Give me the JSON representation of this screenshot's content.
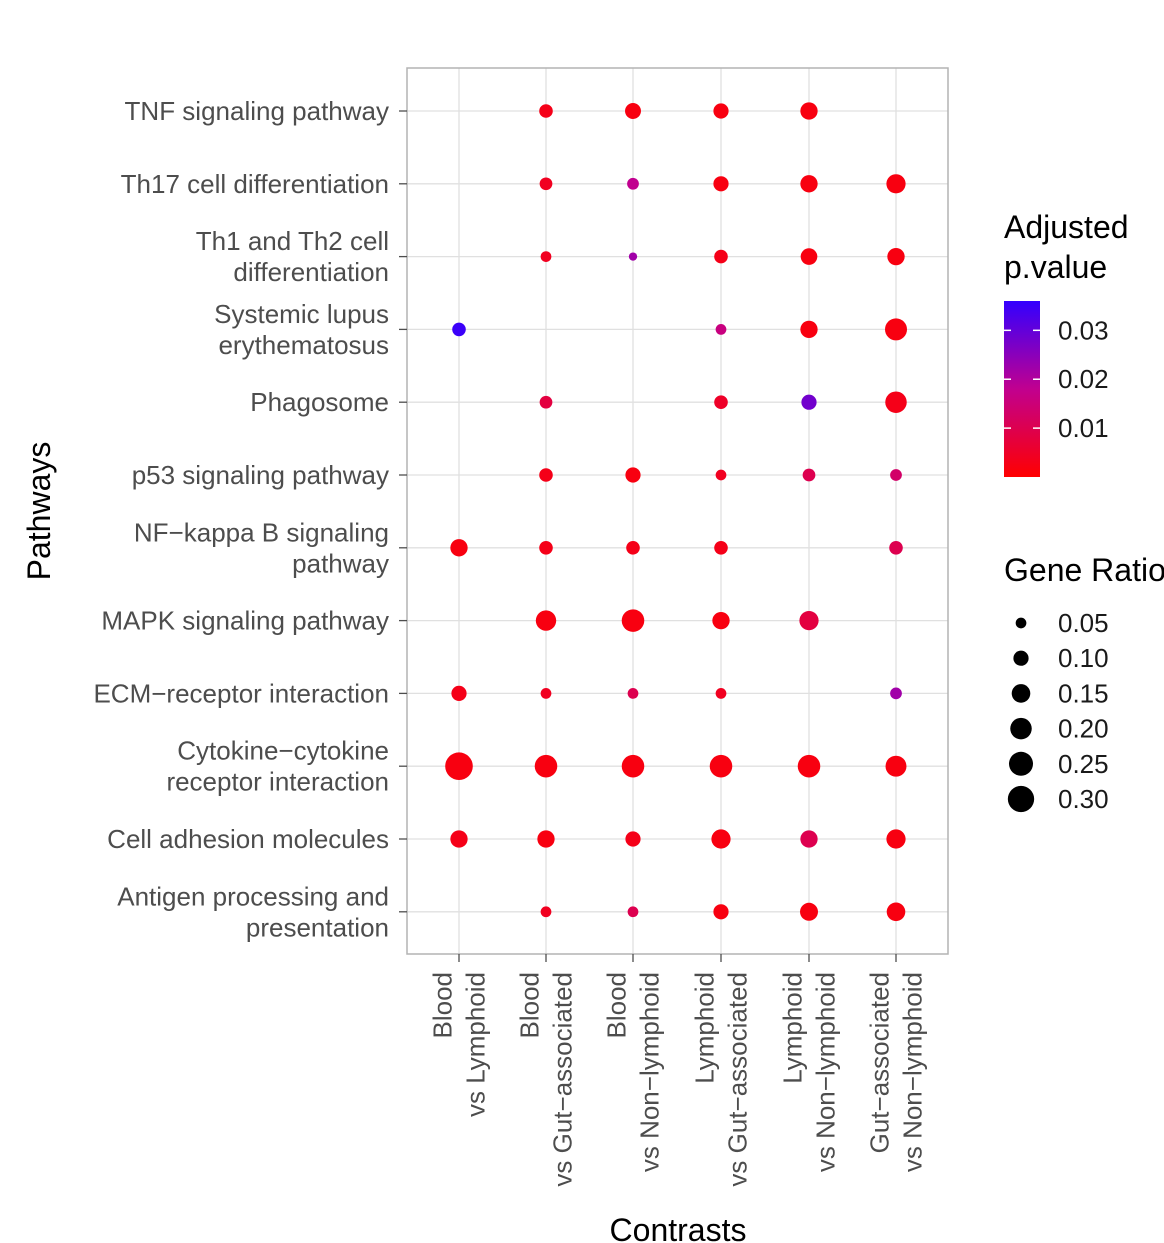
{
  "chart_data": {
    "type": "scatter",
    "subtype": "dot-plot",
    "title": "",
    "xlabel": "Contrasts",
    "ylabel": "Pathways",
    "grid": true,
    "x_categories": [
      [
        "Blood",
        "vs Lymphoid"
      ],
      [
        "Blood",
        "vs Gut−associated"
      ],
      [
        "Blood",
        "vs Non−lymphoid"
      ],
      [
        "Lymphoid",
        "vs Gut−associated"
      ],
      [
        "Lymphoid",
        "vs Non−lymphoid"
      ],
      [
        "Gut−associated",
        "vs Non−lymphoid"
      ]
    ],
    "y_categories": [
      [
        "TNF signaling pathway"
      ],
      [
        "Th17 cell differentiation"
      ],
      [
        "Th1 and Th2 cell",
        "differentiation"
      ],
      [
        "Systemic lupus",
        "erythematosus"
      ],
      [
        "Phagosome"
      ],
      [
        "p53 signaling pathway"
      ],
      [
        "NF−kappa B signaling",
        "pathway"
      ],
      [
        "MAPK signaling pathway"
      ],
      [
        "ECM−receptor interaction"
      ],
      [
        "Cytokine−cytokine",
        "receptor interaction"
      ],
      [
        "Cell adhesion molecules"
      ],
      [
        "Antigen processing and",
        "presentation"
      ]
    ],
    "points": [
      {
        "row": 0,
        "col": 1,
        "ratio": 0.08,
        "p": 0.003
      },
      {
        "row": 0,
        "col": 2,
        "ratio": 0.11,
        "p": 0.002
      },
      {
        "row": 0,
        "col": 3,
        "ratio": 0.1,
        "p": 0.002
      },
      {
        "row": 0,
        "col": 4,
        "ratio": 0.13,
        "p": 0.002
      },
      {
        "row": 1,
        "col": 1,
        "ratio": 0.07,
        "p": 0.004
      },
      {
        "row": 1,
        "col": 2,
        "ratio": 0.06,
        "p": 0.018
      },
      {
        "row": 1,
        "col": 3,
        "ratio": 0.1,
        "p": 0.002
      },
      {
        "row": 1,
        "col": 4,
        "ratio": 0.13,
        "p": 0.002
      },
      {
        "row": 1,
        "col": 5,
        "ratio": 0.16,
        "p": 0.002
      },
      {
        "row": 2,
        "col": 1,
        "ratio": 0.05,
        "p": 0.004
      },
      {
        "row": 2,
        "col": 2,
        "ratio": 0.03,
        "p": 0.022
      },
      {
        "row": 2,
        "col": 3,
        "ratio": 0.08,
        "p": 0.003
      },
      {
        "row": 2,
        "col": 4,
        "ratio": 0.12,
        "p": 0.002
      },
      {
        "row": 2,
        "col": 5,
        "ratio": 0.13,
        "p": 0.002
      },
      {
        "row": 3,
        "col": 0,
        "ratio": 0.08,
        "p": 0.035
      },
      {
        "row": 3,
        "col": 3,
        "ratio": 0.05,
        "p": 0.016
      },
      {
        "row": 3,
        "col": 4,
        "ratio": 0.13,
        "p": 0.002
      },
      {
        "row": 3,
        "col": 5,
        "ratio": 0.21,
        "p": 0.002
      },
      {
        "row": 4,
        "col": 1,
        "ratio": 0.07,
        "p": 0.008
      },
      {
        "row": 4,
        "col": 3,
        "ratio": 0.08,
        "p": 0.005
      },
      {
        "row": 4,
        "col": 4,
        "ratio": 0.1,
        "p": 0.028
      },
      {
        "row": 4,
        "col": 5,
        "ratio": 0.2,
        "p": 0.003
      },
      {
        "row": 5,
        "col": 1,
        "ratio": 0.08,
        "p": 0.003
      },
      {
        "row": 5,
        "col": 2,
        "ratio": 0.1,
        "p": 0.002
      },
      {
        "row": 5,
        "col": 3,
        "ratio": 0.05,
        "p": 0.004
      },
      {
        "row": 5,
        "col": 4,
        "ratio": 0.07,
        "p": 0.01
      },
      {
        "row": 5,
        "col": 5,
        "ratio": 0.06,
        "p": 0.013
      },
      {
        "row": 6,
        "col": 0,
        "ratio": 0.13,
        "p": 0.002
      },
      {
        "row": 6,
        "col": 1,
        "ratio": 0.08,
        "p": 0.003
      },
      {
        "row": 6,
        "col": 2,
        "ratio": 0.08,
        "p": 0.003
      },
      {
        "row": 6,
        "col": 3,
        "ratio": 0.08,
        "p": 0.003
      },
      {
        "row": 6,
        "col": 5,
        "ratio": 0.08,
        "p": 0.01
      },
      {
        "row": 7,
        "col": 1,
        "ratio": 0.18,
        "p": 0.002
      },
      {
        "row": 7,
        "col": 2,
        "ratio": 0.22,
        "p": 0.002
      },
      {
        "row": 7,
        "col": 3,
        "ratio": 0.13,
        "p": 0.002
      },
      {
        "row": 7,
        "col": 4,
        "ratio": 0.16,
        "p": 0.008
      },
      {
        "row": 8,
        "col": 0,
        "ratio": 0.1,
        "p": 0.003
      },
      {
        "row": 8,
        "col": 1,
        "ratio": 0.05,
        "p": 0.004
      },
      {
        "row": 8,
        "col": 2,
        "ratio": 0.05,
        "p": 0.01
      },
      {
        "row": 8,
        "col": 3,
        "ratio": 0.05,
        "p": 0.004
      },
      {
        "row": 8,
        "col": 5,
        "ratio": 0.06,
        "p": 0.022
      },
      {
        "row": 9,
        "col": 0,
        "ratio": 0.33,
        "p": 0.002
      },
      {
        "row": 9,
        "col": 1,
        "ratio": 0.22,
        "p": 0.002
      },
      {
        "row": 9,
        "col": 2,
        "ratio": 0.22,
        "p": 0.002
      },
      {
        "row": 9,
        "col": 3,
        "ratio": 0.22,
        "p": 0.002
      },
      {
        "row": 9,
        "col": 4,
        "ratio": 0.22,
        "p": 0.002
      },
      {
        "row": 9,
        "col": 5,
        "ratio": 0.19,
        "p": 0.002
      },
      {
        "row": 10,
        "col": 0,
        "ratio": 0.13,
        "p": 0.003
      },
      {
        "row": 10,
        "col": 1,
        "ratio": 0.13,
        "p": 0.002
      },
      {
        "row": 10,
        "col": 2,
        "ratio": 0.1,
        "p": 0.003
      },
      {
        "row": 10,
        "col": 3,
        "ratio": 0.16,
        "p": 0.002
      },
      {
        "row": 10,
        "col": 4,
        "ratio": 0.13,
        "p": 0.01
      },
      {
        "row": 10,
        "col": 5,
        "ratio": 0.16,
        "p": 0.002
      },
      {
        "row": 11,
        "col": 1,
        "ratio": 0.05,
        "p": 0.004
      },
      {
        "row": 11,
        "col": 2,
        "ratio": 0.05,
        "p": 0.01
      },
      {
        "row": 11,
        "col": 3,
        "ratio": 0.1,
        "p": 0.002
      },
      {
        "row": 11,
        "col": 4,
        "ratio": 0.14,
        "p": 0.002
      },
      {
        "row": 11,
        "col": 5,
        "ratio": 0.15,
        "p": 0.002
      }
    ],
    "color_legend": {
      "title_lines": [
        "Adjusted",
        "p.value"
      ],
      "min": 0.0,
      "max": 0.036,
      "low_color": "#ff0000",
      "high_color": "#0000ff",
      "breaks": [
        0.01,
        0.02,
        0.03
      ],
      "break_labels": [
        "0.01",
        "0.02",
        "0.03"
      ]
    },
    "size_legend": {
      "title": "Gene Ratio",
      "breaks": [
        0.05,
        0.1,
        0.15,
        0.2,
        0.25,
        0.3
      ],
      "break_labels": [
        "0.05",
        "0.10",
        "0.15",
        "0.20",
        "0.25",
        "0.30"
      ],
      "ratio_max": 0.33
    },
    "legend_position": "right"
  }
}
